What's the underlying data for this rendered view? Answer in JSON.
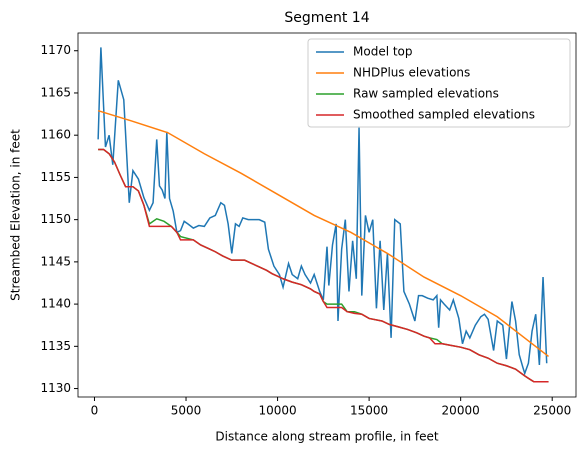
{
  "chart_data": {
    "type": "line",
    "title": "Segment 14",
    "x_label": "Distance along stream profile, in feet",
    "y_label": "Streambed Elevation, in feet",
    "xlim": [
      -900,
      26300
    ],
    "ylim": [
      1129,
      1172.1
    ],
    "xticks": [
      0,
      5000,
      10000,
      15000,
      20000,
      25000
    ],
    "yticks": [
      1130,
      1135,
      1140,
      1145,
      1150,
      1155,
      1160,
      1165,
      1170
    ],
    "grid": false,
    "legend": "upper right",
    "series": [
      {
        "name": "Model top",
        "color": "#1f77b4",
        "x": [
          200,
          350,
          600,
          800,
          1000,
          1300,
          1600,
          1900,
          2100,
          2400,
          2700,
          3000,
          3200,
          3400,
          3550,
          3700,
          3850,
          3950,
          4100,
          4300,
          4500,
          4700,
          4900,
          5100,
          5400,
          5700,
          6000,
          6300,
          6600,
          6900,
          7100,
          7300,
          7500,
          7700,
          7900,
          8100,
          8400,
          8700,
          9000,
          9300,
          9500,
          9800,
          10100,
          10300,
          10600,
          10800,
          11100,
          11300,
          11500,
          11800,
          12000,
          12300,
          12500,
          12700,
          12800,
          13000,
          13200,
          13300,
          13500,
          13700,
          13900,
          14100,
          14300,
          14450,
          14600,
          14800,
          15000,
          15200,
          15400,
          15600,
          15800,
          16000,
          16200,
          16400,
          16700,
          16900,
          17200,
          17500,
          17700,
          17900,
          18200,
          18500,
          18700,
          18800,
          18900,
          19100,
          19400,
          19600,
          19900,
          20100,
          20300,
          20500,
          20800,
          21100,
          21300,
          21500,
          21800,
          22000,
          22300,
          22500,
          22800,
          23000,
          23200,
          23400,
          23500,
          23700,
          23900,
          24100,
          24300,
          24500,
          24700
        ],
        "values": [
          1159.5,
          1170.4,
          1158.6,
          1160,
          1156.5,
          1166.5,
          1164.2,
          1152,
          1155.8,
          1154.8,
          1152.6,
          1151.1,
          1152,
          1159.5,
          1154,
          1153.5,
          1152.5,
          1160.4,
          1152.5,
          1151,
          1148.5,
          1148.7,
          1149.8,
          1149.5,
          1149,
          1149.3,
          1149.2,
          1150.2,
          1150.5,
          1152,
          1151.7,
          1149.5,
          1146,
          1149.5,
          1149.2,
          1150.2,
          1150,
          1150,
          1150,
          1149.7,
          1146.5,
          1144.5,
          1143.5,
          1142,
          1144.8,
          1143.5,
          1143,
          1144.5,
          1143.5,
          1142.5,
          1143.5,
          1141.5,
          1140.5,
          1146.8,
          1142.2,
          1147,
          1149.5,
          1138,
          1146.5,
          1150,
          1141.5,
          1147.5,
          1143,
          1160.9,
          1141,
          1150.5,
          1148.5,
          1150,
          1139.5,
          1147.5,
          1139.3,
          1146,
          1136,
          1150,
          1149.5,
          1141.5,
          1140,
          1138,
          1141,
          1141,
          1140.7,
          1140.5,
          1141,
          1137.2,
          1140.5,
          1140,
          1139.3,
          1140.5,
          1138.3,
          1135.3,
          1136.8,
          1136,
          1137.5,
          1138.5,
          1138.8,
          1138.2,
          1134.5,
          1138,
          1137.5,
          1133.5,
          1140.3,
          1138,
          1134,
          1132.5,
          1131.8,
          1133,
          1136.8,
          1138.8,
          1132.8,
          1143.2,
          1133
        ]
      },
      {
        "name": "NHDPlus elevations",
        "color": "#ff7f0e",
        "x": [
          200,
          2000,
          4000,
          6000,
          8000,
          10000,
          12000,
          14000,
          16000,
          18000,
          20000,
          22000,
          24800
        ],
        "values": [
          1162.9,
          1161.7,
          1160.3,
          1157.8,
          1155.5,
          1153,
          1150.5,
          1148.5,
          1146,
          1143.2,
          1141,
          1138.5,
          1133.8
        ]
      },
      {
        "name": "Raw sampled elevations",
        "color": "#2ca02c",
        "x": [
          200,
          500,
          800,
          1100,
          1400,
          1700,
          2100,
          2400,
          2700,
          3000,
          3400,
          3800,
          4200,
          4500,
          4700,
          5400,
          5800,
          6200,
          6600,
          7000,
          7500,
          8200,
          8600,
          9000,
          9400,
          9700,
          10000,
          10300,
          10800,
          11300,
          11800,
          12000,
          12300,
          12500,
          12700,
          13500,
          13800,
          14200,
          14600,
          15000,
          15700,
          16100,
          16600,
          17100,
          17600,
          18000,
          18300,
          18700,
          19000,
          19500,
          20000,
          20500,
          21000,
          21500,
          22000,
          22500,
          23000,
          23500,
          23700,
          24000,
          24800
        ],
        "values": [
          1158.3,
          1158.3,
          1157.8,
          1156.8,
          1155.3,
          1153.9,
          1153.9,
          1153.4,
          1151.7,
          1149.5,
          1150.1,
          1149.8,
          1149.2,
          1148.5,
          1148,
          1147.6,
          1147,
          1146.6,
          1146.2,
          1145.7,
          1145.2,
          1145.2,
          1144.8,
          1144.4,
          1144,
          1143.6,
          1143.3,
          1143,
          1142.6,
          1142.3,
          1141.8,
          1141.5,
          1141.2,
          1140.3,
          1140,
          1140,
          1139.1,
          1139.1,
          1138.8,
          1138.3,
          1138,
          1137.6,
          1137.3,
          1137,
          1136.6,
          1136.2,
          1136,
          1135.8,
          1135.3,
          1135.1,
          1134.9,
          1134.6,
          1134,
          1133.6,
          1133,
          1132.7,
          1132.3,
          1131.5,
          1131.2,
          1130.8,
          1130.8
        ]
      },
      {
        "name": "Smoothed sampled elevations",
        "color": "#d62728",
        "x": [
          200,
          500,
          800,
          1100,
          1400,
          1700,
          2100,
          2400,
          2700,
          3000,
          4200,
          4500,
          4700,
          5400,
          5800,
          6200,
          6600,
          7000,
          7500,
          8200,
          8600,
          9000,
          9400,
          9700,
          10000,
          10300,
          10800,
          11300,
          11800,
          12000,
          12300,
          12500,
          12700,
          13500,
          13800,
          14200,
          14600,
          15000,
          15700,
          16100,
          16600,
          17100,
          17600,
          18000,
          18300,
          18600,
          19000,
          19500,
          20000,
          20500,
          21000,
          21500,
          22000,
          22500,
          23000,
          23500,
          24000,
          24800
        ],
        "values": [
          1158.3,
          1158.3,
          1157.8,
          1156.8,
          1155.3,
          1153.9,
          1153.9,
          1153.4,
          1151.7,
          1149.2,
          1149.2,
          1148.5,
          1147.6,
          1147.6,
          1147,
          1146.6,
          1146.2,
          1145.7,
          1145.2,
          1145.2,
          1144.8,
          1144.4,
          1144,
          1143.6,
          1143.3,
          1143,
          1142.6,
          1142.3,
          1141.8,
          1141.5,
          1141.2,
          1140.3,
          1139.6,
          1139.6,
          1139.1,
          1138.9,
          1138.8,
          1138.3,
          1138,
          1137.6,
          1137.3,
          1137,
          1136.6,
          1136.2,
          1136,
          1135.3,
          1135.3,
          1135.1,
          1134.9,
          1134.6,
          1134,
          1133.6,
          1133,
          1132.7,
          1132.3,
          1131.5,
          1130.8,
          1130.8
        ]
      }
    ]
  }
}
